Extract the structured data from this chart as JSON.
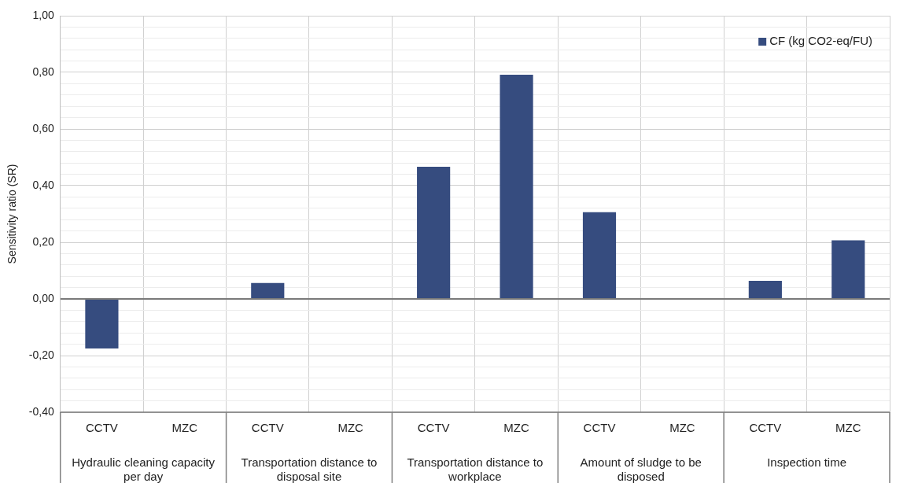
{
  "chart_data": {
    "type": "bar",
    "ylabel": "Sensitivity ratio (SR)",
    "categories": [
      "CCTV",
      "MZC",
      "CCTV",
      "MZC",
      "CCTV",
      "MZC",
      "CCTV",
      "MZC",
      "CCTV",
      "MZC"
    ],
    "series": [
      {
        "name": "CF (kg CO2-eq/FU)",
        "color": "#364c7f",
        "values": [
          -0.175,
          0,
          0.056,
          0,
          0.467,
          0.792,
          0.306,
          0,
          0.064,
          0.207
        ]
      }
    ],
    "annotations": [
      "Hydraulic cleaning capacity per day",
      "Transportation distance to disposal site",
      "Transportation distance to workplace",
      "Amount of sludge to be disposed",
      "Inspection time"
    ],
    "ylim": [
      -0.4,
      1.0
    ],
    "yticks": [
      {
        "value": -0.4,
        "label": "-0,40"
      },
      {
        "value": -0.36,
        "label": null
      },
      {
        "value": -0.32,
        "label": null
      },
      {
        "value": -0.28,
        "label": null
      },
      {
        "value": -0.24,
        "label": null
      },
      {
        "value": -0.2,
        "label": "-0,20"
      },
      {
        "value": -0.16,
        "label": null
      },
      {
        "value": -0.12,
        "label": null
      },
      {
        "value": -0.08,
        "label": null
      },
      {
        "value": -0.04,
        "label": null
      },
      {
        "value": 0,
        "label": "0,00"
      },
      {
        "value": 0.04,
        "label": null
      },
      {
        "value": 0.08,
        "label": null
      },
      {
        "value": 0.12,
        "label": null
      },
      {
        "value": 0.16,
        "label": null
      },
      {
        "value": 0.2,
        "label": "0,20"
      },
      {
        "value": 0.24,
        "label": null
      },
      {
        "value": 0.28,
        "label": null
      },
      {
        "value": 0.32,
        "label": null
      },
      {
        "value": 0.36,
        "label": null
      },
      {
        "value": 0.4,
        "label": "0,40"
      },
      {
        "value": 0.44,
        "label": null
      },
      {
        "value": 0.48,
        "label": null
      },
      {
        "value": 0.52,
        "label": null
      },
      {
        "value": 0.56,
        "label": null
      },
      {
        "value": 0.6,
        "label": "0,60"
      },
      {
        "value": 0.64,
        "label": null
      },
      {
        "value": 0.68,
        "label": null
      },
      {
        "value": 0.72,
        "label": null
      },
      {
        "value": 0.76,
        "label": null
      },
      {
        "value": 0.8,
        "label": "0,80"
      },
      {
        "value": 0.84,
        "label": null
      },
      {
        "value": 0.88,
        "label": null
      },
      {
        "value": 0.92,
        "label": null
      },
      {
        "value": 0.96,
        "label": null
      },
      {
        "value": 1.0,
        "label": "1,00"
      }
    ],
    "grid": true,
    "legend": "top right"
  }
}
